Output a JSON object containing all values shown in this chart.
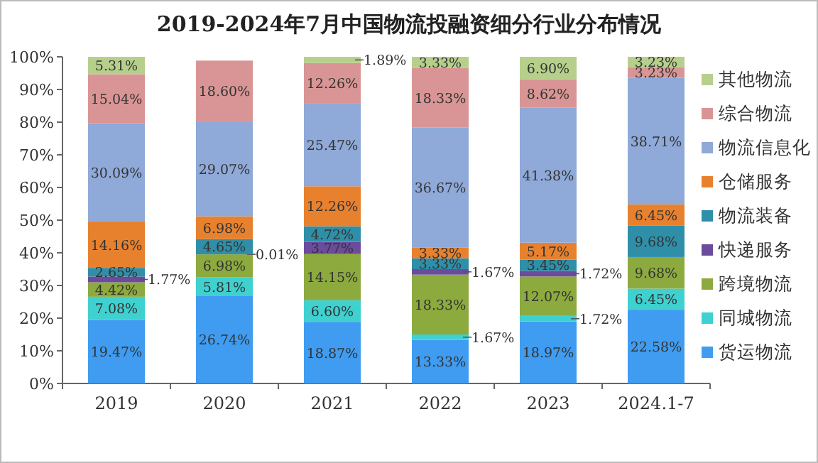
{
  "chart_data": {
    "type": "bar",
    "stacked": true,
    "title": "2019-2024年7月中国物流投融资细分行业分布情况",
    "categories": [
      "2019",
      "2020",
      "2021",
      "2022",
      "2023",
      "2024.1-7"
    ],
    "ylim": [
      0,
      100
    ],
    "yticks": [
      {
        "value": 0,
        "label": "0%"
      },
      {
        "value": 10,
        "label": "10%"
      },
      {
        "value": 20,
        "label": "20%"
      },
      {
        "value": 30,
        "label": "30%"
      },
      {
        "value": 40,
        "label": "40%"
      },
      {
        "value": 50,
        "label": "50%"
      },
      {
        "value": 60,
        "label": "60%"
      },
      {
        "value": 70,
        "label": "70%"
      },
      {
        "value": 80,
        "label": "80%"
      },
      {
        "value": 90,
        "label": "90%"
      },
      {
        "value": 100,
        "label": "100%"
      }
    ],
    "legend": "right",
    "grid": false,
    "series": [
      {
        "name": "货运物流",
        "color": "#3f9cf0",
        "values": [
          19.47,
          26.74,
          18.87,
          13.33,
          18.97,
          22.58
        ],
        "value_labels": [
          "19.47%",
          "26.74%",
          "18.87%",
          "13.33%",
          "18.97%",
          "22.58%"
        ]
      },
      {
        "name": "同城物流",
        "color": "#3fd0d0",
        "values": [
          7.08,
          5.81,
          6.6,
          1.67,
          1.72,
          6.45
        ],
        "value_labels": [
          "7.08%",
          "5.81%",
          "6.60%",
          "1.67%",
          "1.72%",
          "6.45%"
        ]
      },
      {
        "name": "跨境物流",
        "color": "#8caa3e",
        "values": [
          4.42,
          6.98,
          14.15,
          18.33,
          12.07,
          9.68
        ],
        "value_labels": [
          "4.42%",
          "6.98%",
          "14.15%",
          "18.33%",
          "12.07%",
          "9.68%"
        ]
      },
      {
        "name": "快递服务",
        "color": "#6b4c9c",
        "values": [
          1.77,
          0.01,
          3.77,
          1.67,
          1.72,
          null
        ],
        "value_labels": [
          "1.77%",
          "0.01%",
          "3.77%",
          "1.67%",
          "1.72%",
          null
        ]
      },
      {
        "name": "物流装备",
        "color": "#2f8fa8",
        "values": [
          2.65,
          4.65,
          4.72,
          3.33,
          3.45,
          9.68
        ],
        "value_labels": [
          "2.65%",
          "4.65%",
          "4.72%",
          "3.33%",
          "3.45%",
          "9.68%"
        ]
      },
      {
        "name": "仓储服务",
        "color": "#e8812e",
        "values": [
          14.16,
          6.98,
          12.26,
          3.33,
          5.17,
          6.45
        ],
        "value_labels": [
          "14.16%",
          "6.98%",
          "12.26%",
          "3.33%",
          "5.17%",
          "6.45%"
        ]
      },
      {
        "name": "物流信息化",
        "color": "#8fa9d8",
        "values": [
          30.09,
          29.07,
          25.47,
          36.67,
          41.38,
          38.71
        ],
        "value_labels": [
          "30.09%",
          "29.07%",
          "25.47%",
          "36.67%",
          "41.38%",
          "38.71%"
        ]
      },
      {
        "name": "综合物流",
        "color": "#d99595",
        "values": [
          15.04,
          18.6,
          12.26,
          18.33,
          8.62,
          3.23
        ],
        "value_labels": [
          "15.04%",
          "18.60%",
          "12.26%",
          "18.33%",
          "8.62%",
          "3.23%"
        ]
      },
      {
        "name": "其他物流",
        "color": "#b6d08b",
        "values": [
          5.31,
          null,
          1.89,
          3.33,
          6.9,
          3.23
        ],
        "value_labels": [
          "5.31%",
          null,
          "1.89%",
          "3.33%",
          "6.90%",
          "3.23%"
        ]
      }
    ]
  }
}
